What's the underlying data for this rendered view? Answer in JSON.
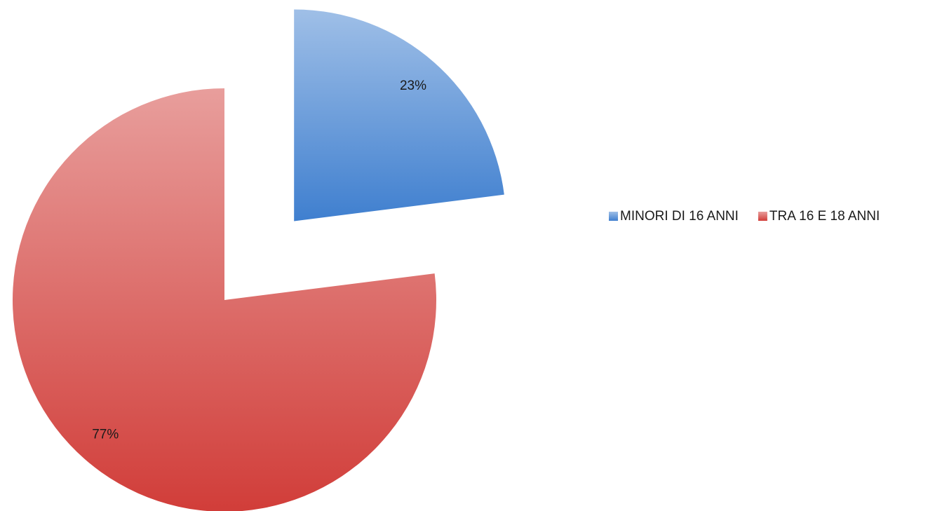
{
  "chart_data": {
    "type": "pie",
    "categories": [
      "MINORI DI 16 ANNI",
      "TRA 16 E 18 ANNI"
    ],
    "values": [
      23,
      77
    ],
    "value_labels": [
      "23%",
      "77%"
    ],
    "colors": [
      "#3f7fcf",
      "#d13d39"
    ],
    "legend": "right"
  }
}
